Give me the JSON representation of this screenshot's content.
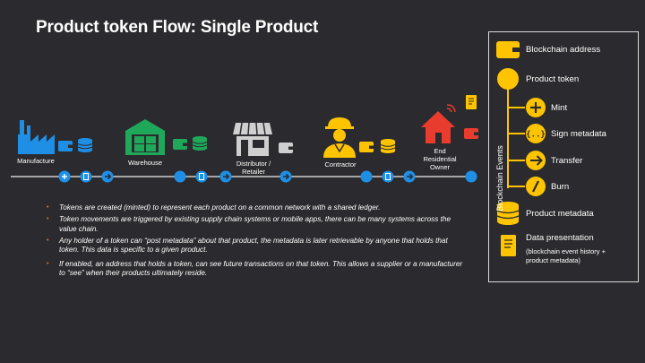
{
  "title": "Product token Flow: Single Product",
  "stages": [
    {
      "label": "Manufacture"
    },
    {
      "label": "Warehouse"
    },
    {
      "label": "Distributor /\nRetailer"
    },
    {
      "label": "Contractor"
    },
    {
      "label": "End\nResidential\nOwner"
    }
  ],
  "bullets": [
    "Tokens are created (minted) to represent each product on a common network with a shared ledger.",
    "Token movements are triggered by existing supply chain systems or mobile apps, there can be many systems across the value chain.",
    "Any holder of a token can “post metadata” about that product, the metadata is later retrievable by anyone that holds that token.  This data is specific to a given product.",
    "If enabled, an address that holds a token, can see future transactions on that token. This allows a supplier or a manufacturer to “see” when their products ultimately reside."
  ],
  "legend": {
    "blockchain_address": "Blockchain address",
    "product_token": "Product token",
    "events_title": "Blockchain Events",
    "mint": "Mint",
    "sign_metadata": "Sign metadata",
    "transfer": "Transfer",
    "burn": "Burn",
    "product_metadata": "Product metadata",
    "data_presentation": "Data presentation",
    "data_presentation_note": "(blockchain event history +\nproduct metadata)"
  },
  "colors": {
    "background": "#2b2b2f",
    "blue": "#1f8fe6",
    "green": "#1fa85a",
    "yellow": "#ffc400",
    "red": "#e83c2e",
    "gray": "#cfcfcf"
  },
  "icons": [
    "factory-icon",
    "warehouse-icon",
    "store-icon",
    "worker-icon",
    "house-icon",
    "wallet-icon",
    "database-icon",
    "document-icon",
    "plus-icon",
    "arrow-icon",
    "sign-icon",
    "burn-icon",
    "wifi-icon"
  ]
}
